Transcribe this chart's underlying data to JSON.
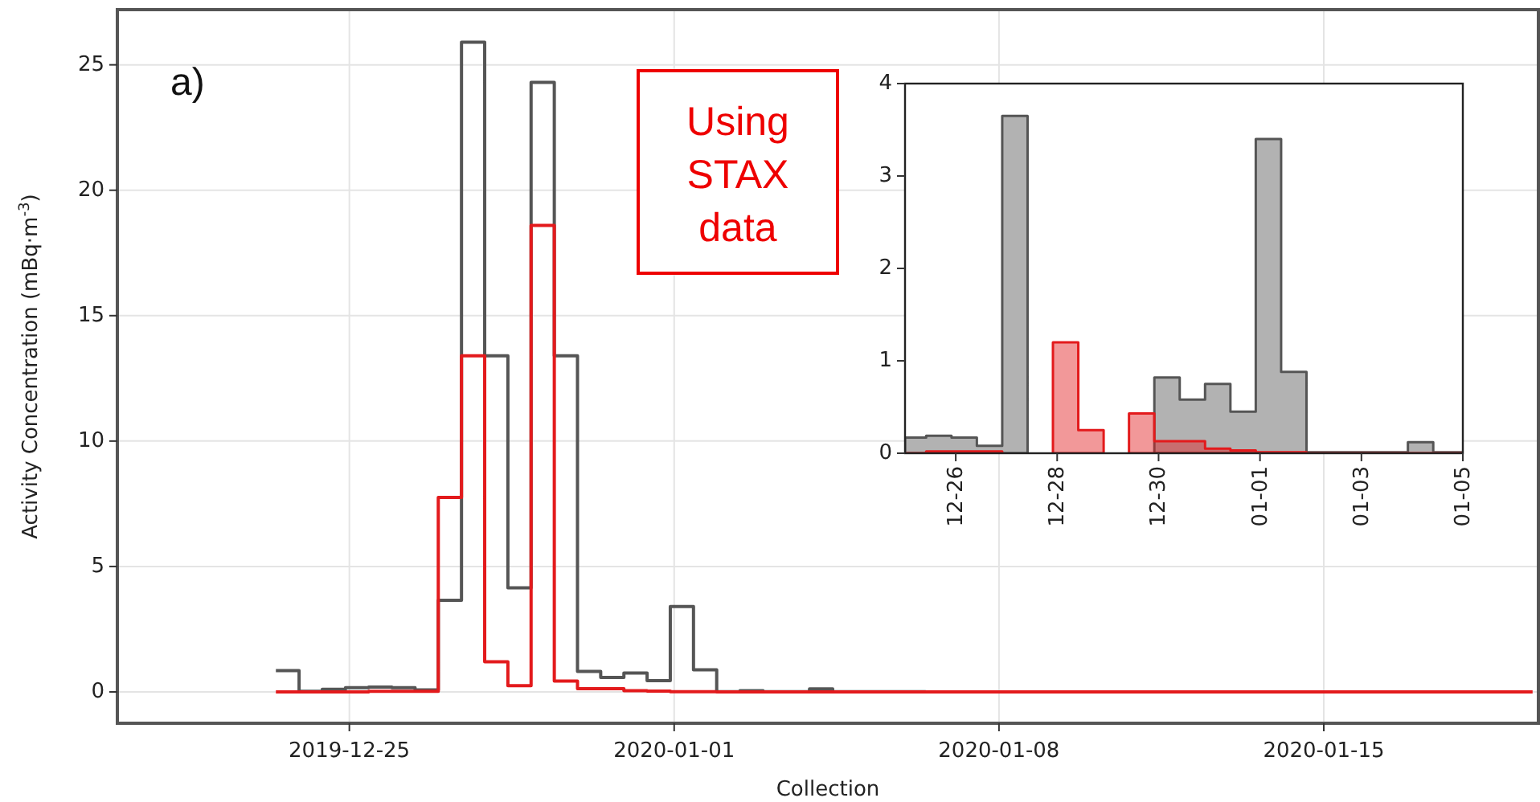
{
  "chart_data": [
    {
      "type": "step",
      "xlabel": "Collection",
      "ylabel": "Activity Concentration (mBq·m$^{-3}$)",
      "xlim": [
        "2019-12-20",
        "2020-01-19T15:00"
      ],
      "xticks": [
        {
          "value": "2019-12-25",
          "label": "2019-12-25"
        },
        {
          "value": "2020-01-01",
          "label": "2020-01-01"
        },
        {
          "value": "2020-01-08",
          "label": "2020-01-08"
        },
        {
          "value": "2020-01-15",
          "label": "2020-01-15"
        }
      ],
      "ylim": [
        -1.25,
        27.2
      ],
      "yticks": [
        0,
        5,
        10,
        15,
        20,
        25
      ],
      "grid": true,
      "annotations": [
        "a)",
        "Using\nSTAX\ndata"
      ],
      "series": [
        {
          "color": "#555555",
          "x": [
            "2019-12-23T10:00",
            "2019-12-23T22:00",
            "2019-12-24T10:00",
            "2019-12-24T22:00",
            "2019-12-25T10:00",
            "2019-12-25T22:00",
            "2019-12-26T10:00",
            "2019-12-26T22:00",
            "2019-12-27T10:00",
            "2019-12-27T22:00",
            "2019-12-28T10:00",
            "2019-12-28T22:00",
            "2019-12-29T10:00",
            "2019-12-29T22:00",
            "2019-12-30T10:00",
            "2019-12-30T22:00",
            "2019-12-31T10:00",
            "2019-12-31T22:00",
            "2020-01-01T10:00",
            "2020-01-01T22:00",
            "2020-01-02T10:00",
            "2020-01-02T22:00",
            "2020-01-03T10:00",
            "2020-01-03T22:00",
            "2020-01-04T10:00",
            "2020-01-06T10:00"
          ],
          "values": [
            0.85,
            0.02,
            0.1,
            0.17,
            0.19,
            0.17,
            0.08,
            3.65,
            25.9,
            13.4,
            4.15,
            24.3,
            13.4,
            0.82,
            0.58,
            0.75,
            0.45,
            3.4,
            0.88,
            0.01,
            0.05,
            0.01,
            0.01,
            0.12,
            0.01,
            0
          ]
        },
        {
          "color": "#e31a1c",
          "x": [
            "2019-12-23T10:00",
            "2019-12-23T22:00",
            "2019-12-24T10:00",
            "2019-12-24T22:00",
            "2019-12-25T10:00",
            "2019-12-25T22:00",
            "2019-12-26T10:00",
            "2019-12-26T22:00",
            "2019-12-27T10:00",
            "2019-12-27T22:00",
            "2019-12-28T10:00",
            "2019-12-28T22:00",
            "2019-12-29T10:00",
            "2019-12-29T22:00",
            "2019-12-30T10:00",
            "2019-12-30T22:00",
            "2019-12-31T10:00",
            "2019-12-31T22:00",
            "2020-01-01T10:00",
            "2020-01-01T22:00",
            "2020-01-19T12:00"
          ],
          "values": [
            0,
            0,
            0,
            0,
            0.02,
            0.02,
            0.02,
            7.75,
            13.4,
            1.2,
            0.25,
            18.6,
            0.43,
            0.13,
            0.13,
            0.05,
            0.03,
            0.01,
            0.01,
            0,
            0
          ]
        }
      ]
    },
    {
      "type": "area",
      "xlim": [
        "2019-12-25",
        "2020-01-05"
      ],
      "xticks": [
        {
          "value": "2019-12-26",
          "label": "12-26"
        },
        {
          "value": "2019-12-28",
          "label": "12-28"
        },
        {
          "value": "2019-12-30",
          "label": "12-30"
        },
        {
          "value": "2020-01-01",
          "label": "01-01"
        },
        {
          "value": "2020-01-03",
          "label": "01-03"
        },
        {
          "value": "2020-01-05",
          "label": "01-05"
        }
      ],
      "ylim": [
        0,
        4
      ],
      "yticks": [
        0,
        1,
        2,
        3,
        4
      ],
      "series": [
        {
          "color": "#555555",
          "x": [
            "2019-12-25T00:00",
            "2019-12-25T10:00",
            "2019-12-25T22:00",
            "2019-12-26T10:00",
            "2019-12-26T22:00",
            "2019-12-27T10:00",
            "2019-12-27T22:00",
            "2019-12-28T10:00",
            "2019-12-28T22:00",
            "2019-12-29T10:00",
            "2019-12-29T22:00",
            "2019-12-30T10:00",
            "2019-12-30T22:00",
            "2019-12-31T10:00",
            "2019-12-31T22:00",
            "2020-01-01T10:00",
            "2020-01-01T22:00",
            "2020-01-02T10:00",
            "2020-01-02T22:00",
            "2020-01-03T10:00",
            "2020-01-03T22:00",
            "2020-01-04T10:00",
            "2020-01-05T00:00"
          ],
          "values": [
            0.17,
            0.19,
            0.17,
            0.08,
            3.65,
            null,
            null,
            null,
            null,
            null,
            0.82,
            0.58,
            0.75,
            0.45,
            3.4,
            0.88,
            0.01,
            0.01,
            0.01,
            0.01,
            0.12,
            0.01,
            0.01
          ]
        },
        {
          "color": "#e31a1c",
          "x": [
            "2019-12-25T00:00",
            "2019-12-25T10:00",
            "2019-12-25T22:00",
            "2019-12-26T10:00",
            "2019-12-26T22:00",
            "2019-12-27T10:00",
            "2019-12-27T22:00",
            "2019-12-28T10:00",
            "2019-12-28T22:00",
            "2019-12-29T10:00",
            "2019-12-29T22:00",
            "2019-12-30T10:00",
            "2019-12-30T22:00",
            "2019-12-31T10:00",
            "2019-12-31T22:00",
            "2020-01-01T10:00",
            "2020-01-01T22:00",
            "2020-01-05T00:00"
          ],
          "values": [
            0,
            0.02,
            0.02,
            0.02,
            null,
            null,
            1.2,
            0.25,
            null,
            0.43,
            0.13,
            0.13,
            0.05,
            0.03,
            0.01,
            0.01,
            0,
            0
          ]
        }
      ]
    }
  ]
}
